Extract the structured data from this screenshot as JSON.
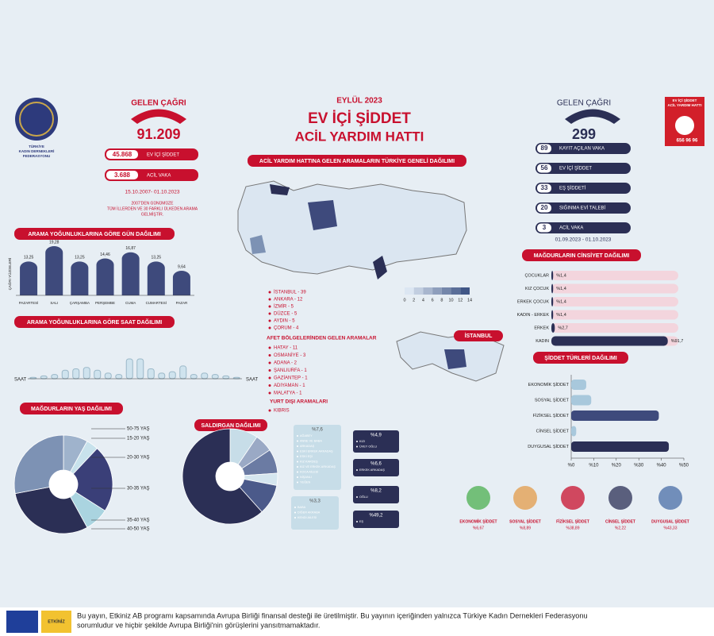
{
  "logo": {
    "lines": [
      "TÜRKİYE",
      "KADIN DERNEKLERİ",
      "FEDERASYONU"
    ]
  },
  "header": {
    "date": "EYLÜL 2023",
    "title": "EV İÇİ ŞİDDET",
    "subtitle": "ACİL YARDIM HATTI"
  },
  "left_stats": {
    "label": "GELEN ÇAĞRI",
    "total": "91.209",
    "rows": [
      {
        "value": "45.868",
        "label": "EV İÇİ ŞİDDET"
      },
      {
        "value": "3.688",
        "label": "ACİL VAKA"
      }
    ],
    "period": "15.10.2007- 01.10.2023",
    "note": [
      "2007'DEN GÜNÜMÜZE",
      "TÜM İLLERDEN VE 30 FARKLI ÜLKEDEN ARAMA",
      "GELMİŞTİR."
    ]
  },
  "right_stats": {
    "label": "GELEN ÇAĞRI",
    "total": "299",
    "rows": [
      {
        "value": "89",
        "label": "KAYIT AÇILAN VAKA"
      },
      {
        "value": "56",
        "label": "EV İÇİ ŞİDDET"
      },
      {
        "value": "33",
        "label": "EŞ ŞİDDETİ"
      },
      {
        "value": "20",
        "label": "SIĞINMA EVİ TALEBİ"
      },
      {
        "value": "3",
        "label": "ACİL VAKA"
      }
    ],
    "period": "01.09.2023 - 01.10.2023"
  },
  "badge": {
    "lines": [
      "EV İÇİ ŞİDDET",
      "ACİL YARDIM HATTI"
    ],
    "phone": "656 96 96"
  },
  "map": {
    "title": "ACİL YARDIM HATTINA GELEN ARAMALARIN TÜRKİYE GENELİ DAĞILIMI",
    "legend_ticks": [
      0,
      2,
      4,
      6,
      8,
      10,
      12,
      14
    ],
    "istanbul_label": "İSTANBUL",
    "top_cities": [
      "İSTANBUL - 39",
      "ANKARA - 12",
      "İZMİR - 5",
      "DÜZCE - 5",
      "AYDIN - 5",
      "ÇORUM - 4"
    ],
    "disaster_title": "AFET BÖLGELERİNDEN GELEN ARAMALAR",
    "disaster_cities": [
      "HATAY - 11",
      "OSMANİYE - 3",
      "ADANA - 2",
      "ŞANLIURFA - 1",
      "GAZİANTEP - 1",
      "ADIYAMAN - 1",
      "MALATYA - 1"
    ],
    "abroad_title": "YURT DIŞI ARAMALARI",
    "abroad": [
      "KIBRIS"
    ]
  },
  "chart_data": [
    {
      "type": "bar",
      "title": "ARAMA YOĞUNLUKLARINA GÖRE GÜN DAĞILIMI",
      "y_label": "ÇAĞRI YÜZDELERİ",
      "categories": [
        "PAZARTESİ",
        "SALI",
        "ÇARŞAMBA",
        "PERŞEMBE",
        "CUMA",
        "CUMARTESİ",
        "PAZAR"
      ],
      "values": [
        13.25,
        19.28,
        13.25,
        14.46,
        16.87,
        13.25,
        9.64
      ],
      "value_labels": [
        "13,25",
        "19,28",
        "13,25",
        "14,46",
        "16,87",
        "13,25",
        "9,64"
      ],
      "color": "#3e4a7c"
    },
    {
      "type": "bar",
      "title": "ARAMA YOĞUNLUKLARINA GÖRE SAAT DAĞILIMI",
      "x_label": "SAAT",
      "categories": [
        null,
        null,
        null,
        null,
        null,
        null,
        null,
        null,
        null,
        null,
        null,
        null,
        null,
        null,
        null,
        null,
        null,
        null,
        null,
        null
      ],
      "values": [
        0.4,
        0.8,
        1.2,
        2.4,
        2.8,
        3.2,
        2.4,
        1.6,
        1.2,
        5.6,
        5.6,
        2.8,
        1.6,
        2,
        3.6,
        1.2,
        1.6,
        1.2,
        0.8,
        0.4
      ],
      "color": "#cfe3ee"
    },
    {
      "type": "pie",
      "title": "MAĞDURLARIN YAŞ DAĞILIMI",
      "categories": [
        "50-75 YAŞ",
        "15-20 YAŞ",
        "20-30 YAŞ",
        "30-35 YAŞ",
        "35-40 YAŞ",
        "40-50 YAŞ"
      ],
      "values": [
        8,
        4,
        22,
        8,
        30,
        28
      ],
      "colors": [
        "#9fb3cc",
        "#c8e2ec",
        "#3a3f78",
        "#aad4e0",
        "#2b2f55",
        "#7d92b4"
      ]
    },
    {
      "type": "pie",
      "title": "SALDIRGAN DAĞILIMI",
      "values": [
        7.6,
        4.9,
        6.6,
        3.3,
        8.2,
        49.2
      ],
      "value_labels": [
        "%7,6",
        "%4,9",
        "%6,6",
        "%3,3",
        "%8,2",
        "%49,2"
      ],
      "items": [
        [
          "AĞABEY",
          "ANNE VE BABA",
          "ARKADAŞ",
          "ESKİ ERKEK ARKADAŞ",
          "ESKİ EŞİ",
          "KIZ KARDEŞ",
          "KIZ VE ERKEK ARKADAŞ",
          "KOCA AİLESİ",
          "NİŞANLI",
          "YEĞEN"
        ],
        [
          "KIZI",
          "ÜVEY OĞLU"
        ],
        [
          "ERKEK ARKADAŞ"
        ],
        [
          "BABA",
          "DİĞER AKRABA",
          "KENDİ AİLESİ"
        ],
        [
          "OĞLU"
        ],
        [
          "EŞ"
        ]
      ],
      "colors": [
        "#c7dde8",
        "#9aa9c5",
        "#6b7ba3",
        "#d5e6ef",
        "#4b5a8a",
        "#2b2f55"
      ]
    },
    {
      "type": "barh",
      "title": "MAĞDURLARIN CİNSİYET DAĞILIMI",
      "categories": [
        "ÇOCUKLAR",
        "KIZ ÇOCUK",
        "ERKEK ÇOCUK",
        "KADIN - ERKEK",
        "ERKEK",
        "KADIN"
      ],
      "values": [
        1.4,
        1.4,
        1.4,
        1.4,
        2.7,
        91.7
      ],
      "value_labels": [
        "%1,4",
        "%1,4",
        "%1,4",
        "%1,4",
        "%2,7",
        "%91,7"
      ],
      "color": "#2b2f55",
      "track": "#f3d5dd"
    },
    {
      "type": "barh",
      "title": "ŞİDDET TÜRLERİ DAĞILIMI",
      "categories": [
        "EKONOMİK ŞİDDET",
        "SOSYAL ŞİDDET",
        "FİZİKSEL ŞİDDET",
        "CİNSEL ŞİDDET",
        "DUYGUSAL ŞİDDET"
      ],
      "values": [
        6.67,
        8.89,
        38.89,
        2.22,
        43.33
      ],
      "value_labels": [
        "%6,67",
        "%8,89",
        "%38,89",
        "%2,22",
        "%43,33"
      ],
      "xlim": [
        0,
        50
      ],
      "xticks": [
        {
          "value": 0,
          "label": "%0"
        },
        {
          "value": 10,
          "label": "%10"
        },
        {
          "value": 20,
          "label": "%20"
        },
        {
          "value": 30,
          "label": "%30"
        },
        {
          "value": 40,
          "label": "%40"
        },
        {
          "value": 50,
          "label": "%50"
        }
      ],
      "colors": [
        "#a8c8dc",
        "#a8c8dc",
        "#3e4a7c",
        "#a8c8dc",
        "#2b2f55"
      ]
    }
  ],
  "footer": {
    "lines": [
      "Bu yayın, Etkiniz AB programı kapsamında Avrupa Birliği finansal desteği ile üretilmiştir. Bu yayının içeriğinden yalnızca Türkiye Kadın Dernekleri Federasyonu",
      "sorumludur ve hiçbir şekilde Avrupa Birliği'nin görüşlerini yansıtmamaktadır."
    ],
    "logo": "ETKİNİZ"
  }
}
